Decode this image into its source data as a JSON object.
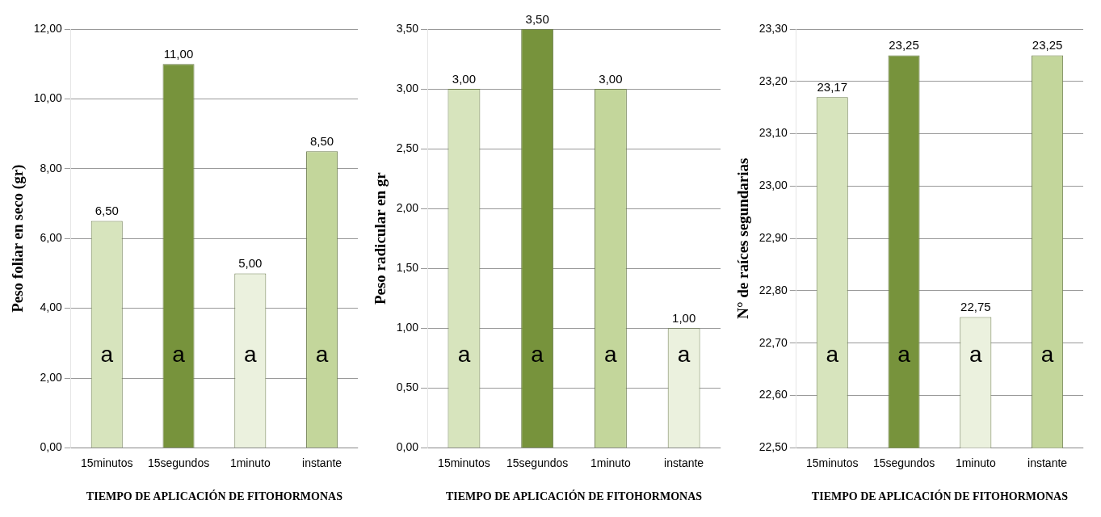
{
  "chart_data": [
    {
      "type": "bar",
      "xlabel": "TIEMPO DE APLICACIÓN DE FITOHORMONAS",
      "ylabel": "Peso foliar en seco (gr)",
      "categories": [
        "15minutos",
        "15segundos",
        "1minuto",
        "instante"
      ],
      "values": [
        6.5,
        11,
        5,
        8.5
      ],
      "colors": [
        "#d7e4bd",
        "#77933c",
        "#ebf1de",
        "#c3d69b"
      ],
      "value_labels": [
        "6,50",
        "11,00",
        "5,00",
        "8,50"
      ],
      "ylim": [
        0,
        12
      ],
      "yticks": [
        {
          "value": 0,
          "label": "0,00"
        },
        {
          "value": 2,
          "label": "2,00"
        },
        {
          "value": 4,
          "label": "4,00"
        },
        {
          "value": 6,
          "label": "6,00"
        },
        {
          "value": 8,
          "label": "8,00"
        },
        {
          "value": 10,
          "label": "10,00"
        },
        {
          "value": 12,
          "label": "12,00"
        }
      ],
      "grid": "y",
      "annotations": [
        "a",
        "a",
        "a",
        "a"
      ]
    },
    {
      "type": "bar",
      "xlabel": "TIEMPO DE APLICACIÓN DE FITOHORMONAS",
      "ylabel": "Peso radicular en gr",
      "categories": [
        "15minutos",
        "15segundos",
        "1minuto",
        "instante"
      ],
      "values": [
        3,
        3.5,
        3,
        1
      ],
      "colors": [
        "#d7e4bd",
        "#77933c",
        "#c3d69b",
        "#ebf1de"
      ],
      "value_labels": [
        "3,00",
        "3,50",
        "3,00",
        "1,00"
      ],
      "ylim": [
        0,
        3.5
      ],
      "yticks": [
        {
          "value": 0,
          "label": "0,00"
        },
        {
          "value": 0.5,
          "label": "0,50"
        },
        {
          "value": 1,
          "label": "1,00"
        },
        {
          "value": 1.5,
          "label": "1,50"
        },
        {
          "value": 2,
          "label": "2,00"
        },
        {
          "value": 2.5,
          "label": "2,50"
        },
        {
          "value": 3,
          "label": "3,00"
        },
        {
          "value": 3.5,
          "label": "3,50"
        }
      ],
      "grid": "y",
      "annotations": [
        "a",
        "a",
        "a",
        "a"
      ]
    },
    {
      "type": "bar",
      "xlabel": "TIEMPO DE APLICACIÓN DE FITOHORMONAS",
      "ylabel": "N° de raíces segundarias",
      "categories": [
        "15minutos",
        "15segundos",
        "1minuto",
        "instante"
      ],
      "values": [
        23.17,
        23.25,
        22.75,
        23.25
      ],
      "colors": [
        "#d7e4bd",
        "#77933c",
        "#ebf1de",
        "#c3d69b"
      ],
      "value_labels": [
        "23,17",
        "23,25",
        "22,75",
        "23,25"
      ],
      "ylim": [
        22.5,
        23.3
      ],
      "yticks": [
        {
          "value": 22.5,
          "label": "22,50"
        },
        {
          "value": 22.6,
          "label": "22,60"
        },
        {
          "value": 22.7,
          "label": "22,70"
        },
        {
          "value": 22.8,
          "label": "22,80"
        },
        {
          "value": 22.9,
          "label": "22,90"
        },
        {
          "value": 23,
          "label": "23,00"
        },
        {
          "value": 23.1,
          "label": "23,10"
        },
        {
          "value": 23.2,
          "label": "23,20"
        },
        {
          "value": 23.3,
          "label": "23,30"
        }
      ],
      "grid": "y",
      "annotations": [
        "a",
        "a",
        "a",
        "a"
      ]
    }
  ]
}
